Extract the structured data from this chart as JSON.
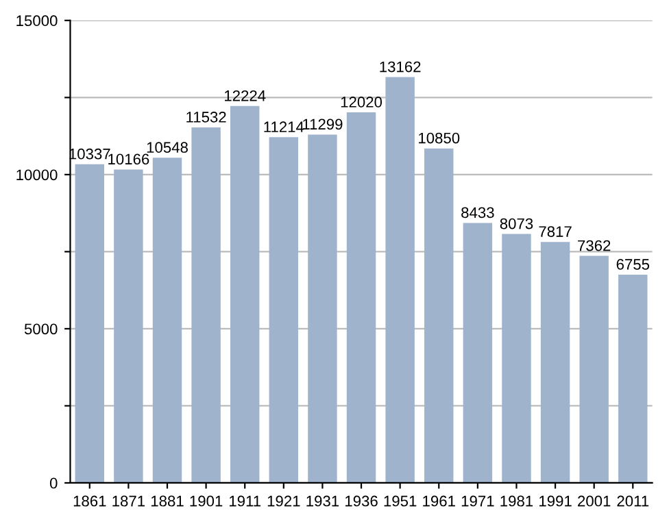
{
  "chart_data": {
    "type": "bar",
    "categories": [
      "1861",
      "1871",
      "1881",
      "1901",
      "1911",
      "1921",
      "1931",
      "1936",
      "1951",
      "1961",
      "1971",
      "1981",
      "1991",
      "2001",
      "2011"
    ],
    "values": [
      10337,
      10166,
      10548,
      11532,
      12224,
      11214,
      11299,
      12020,
      13162,
      10850,
      8433,
      8073,
      7817,
      7362,
      6755
    ],
    "color": "#9fb4cc",
    "ylim": [
      0,
      15000
    ],
    "yticks": [
      0,
      {
        "value": 2500,
        "label": null
      },
      5000,
      {
        "value": 7500,
        "label": null
      },
      10000,
      {
        "value": 12500,
        "label": null
      },
      15000
    ],
    "grid": "y",
    "data_labels": true
  }
}
